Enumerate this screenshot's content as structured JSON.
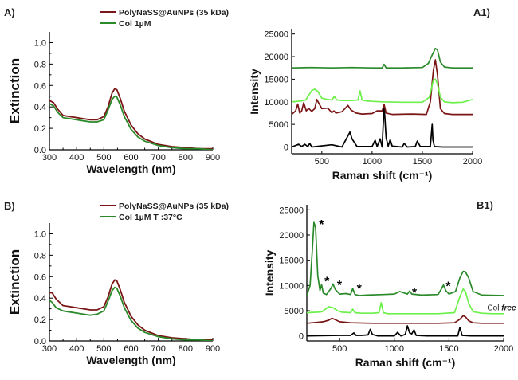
{
  "colors": {
    "dark_red": "#7b1616",
    "dark_green": "#2a8a2a",
    "light_green": "#6cf04a",
    "black": "#000000"
  },
  "chart_data": [
    {
      "id": "A",
      "panel_label": "A)",
      "type": "line",
      "xlabel": "Wavelength (nm)",
      "ylabel": "Extinction",
      "xlim": [
        300,
        900
      ],
      "ylim": [
        0,
        1.1
      ],
      "xticks": [
        300,
        400,
        500,
        600,
        700,
        800,
        900
      ],
      "yticks": [
        0.0,
        0.2,
        0.4,
        0.6,
        0.8,
        1.0
      ],
      "legend": "top-center",
      "series": [
        {
          "name": "PolyNaSS@AuNPs (35 kDa)",
          "color": "#7b1616",
          "x": [
            300,
            315,
            330,
            350,
            375,
            400,
            425,
            450,
            475,
            500,
            515,
            530,
            540,
            548,
            560,
            575,
            600,
            625,
            650,
            700,
            750,
            800,
            850,
            900
          ],
          "y": [
            0.46,
            0.44,
            0.38,
            0.32,
            0.31,
            0.3,
            0.29,
            0.28,
            0.28,
            0.31,
            0.4,
            0.53,
            0.57,
            0.56,
            0.48,
            0.36,
            0.23,
            0.15,
            0.1,
            0.05,
            0.03,
            0.02,
            0.01,
            0.01
          ]
        },
        {
          "name": "Col 1µM",
          "color": "#2a8a2a",
          "x": [
            300,
            315,
            330,
            350,
            375,
            400,
            425,
            450,
            475,
            500,
            515,
            530,
            540,
            548,
            560,
            575,
            600,
            625,
            650,
            700,
            750,
            800,
            850,
            900
          ],
          "y": [
            0.43,
            0.41,
            0.35,
            0.3,
            0.29,
            0.28,
            0.27,
            0.26,
            0.26,
            0.28,
            0.37,
            0.47,
            0.5,
            0.49,
            0.42,
            0.31,
            0.19,
            0.12,
            0.08,
            0.04,
            0.02,
            0.01,
            0.01,
            0.0
          ]
        }
      ]
    },
    {
      "id": "A1",
      "panel_label": "A1)",
      "type": "line",
      "xlabel": "Raman shift (cm⁻¹)",
      "ylabel": "Intensity",
      "xlim": [
        200,
        2000
      ],
      "ylim": [
        -1500,
        26000
      ],
      "xticks": [
        500,
        1000,
        1500,
        2000
      ],
      "yticks": [
        0,
        5000,
        10000,
        15000,
        20000,
        25000
      ],
      "series": [
        {
          "color": "#000000",
          "x": [
            200,
            270,
            300,
            330,
            360,
            380,
            400,
            600,
            700,
            780,
            800,
            850,
            1000,
            1030,
            1050,
            1080,
            1100,
            1120,
            1140,
            1160,
            1180,
            1200,
            1300,
            1320,
            1350,
            1430,
            1450,
            1480,
            1580,
            1598,
            1605,
            1620,
            1700,
            2000
          ],
          "y": [
            0,
            600,
            100,
            600,
            100,
            800,
            0,
            500,
            0,
            3300,
            1800,
            100,
            100,
            1500,
            100,
            1800,
            0,
            9200,
            2000,
            200,
            1600,
            200,
            0,
            800,
            0,
            100,
            1300,
            100,
            100,
            5000,
            1600,
            100,
            0,
            0
          ]
        },
        {
          "color": "#7b1616",
          "x": [
            200,
            240,
            260,
            280,
            300,
            320,
            345,
            370,
            400,
            430,
            450,
            500,
            560,
            600,
            620,
            640,
            700,
            760,
            790,
            840,
            900,
            1000,
            1050,
            1100,
            1120,
            1140,
            1200,
            1400,
            1540,
            1580,
            1610,
            1630,
            1650,
            1680,
            1720,
            1800,
            2000
          ],
          "y": [
            7200,
            8000,
            9500,
            7500,
            8000,
            9800,
            8000,
            8500,
            7900,
            8500,
            10500,
            8500,
            8600,
            7600,
            8000,
            7500,
            7800,
            9200,
            8200,
            7500,
            7300,
            7400,
            8000,
            8000,
            9400,
            7500,
            7200,
            7300,
            7200,
            10000,
            17000,
            19300,
            16000,
            8500,
            7400,
            7200,
            7200
          ]
        },
        {
          "color": "#6cf04a",
          "x": [
            200,
            300,
            340,
            400,
            430,
            460,
            500,
            560,
            600,
            625,
            650,
            700,
            800,
            860,
            880,
            900,
            940,
            1000,
            1100,
            1300,
            1500,
            1570,
            1610,
            1630,
            1650,
            1680,
            1720,
            1800,
            1900,
            2000
          ],
          "y": [
            10000,
            10200,
            10400,
            12500,
            12800,
            12300,
            10800,
            10500,
            10400,
            11200,
            10400,
            10300,
            10300,
            10400,
            12400,
            10400,
            10200,
            10100,
            10000,
            9900,
            9900,
            11000,
            14800,
            15000,
            14000,
            11000,
            10000,
            9800,
            9900,
            10500
          ]
        },
        {
          "color": "#2a8a2a",
          "x": [
            200,
            400,
            600,
            800,
            1000,
            1100,
            1120,
            1140,
            1300,
            1500,
            1560,
            1600,
            1630,
            1650,
            1680,
            1720,
            1800,
            2000
          ],
          "y": [
            17500,
            17600,
            17500,
            17600,
            17500,
            17500,
            18300,
            17500,
            17500,
            17600,
            18500,
            20500,
            21800,
            21500,
            18800,
            17700,
            17500,
            17500
          ]
        }
      ]
    },
    {
      "id": "B",
      "panel_label": "B)",
      "type": "line",
      "xlabel": "Wavelength (nm)",
      "ylabel": "Extinction",
      "xlim": [
        300,
        900
      ],
      "ylim": [
        0,
        1.1
      ],
      "xticks": [
        300,
        400,
        500,
        600,
        700,
        800,
        900
      ],
      "yticks": [
        0.0,
        0.2,
        0.4,
        0.6,
        0.8,
        1.0
      ],
      "legend": "top-center",
      "series": [
        {
          "name": "PolyNaSS@AuNPs (35 kDa)",
          "color": "#7b1616",
          "x": [
            300,
            310,
            325,
            350,
            375,
            400,
            425,
            450,
            475,
            500,
            515,
            530,
            540,
            548,
            560,
            575,
            600,
            625,
            650,
            700,
            750,
            800,
            850,
            900
          ],
          "y": [
            0.45,
            0.45,
            0.39,
            0.33,
            0.32,
            0.31,
            0.3,
            0.29,
            0.29,
            0.32,
            0.41,
            0.53,
            0.57,
            0.56,
            0.48,
            0.36,
            0.23,
            0.15,
            0.1,
            0.05,
            0.03,
            0.02,
            0.01,
            0.01
          ]
        },
        {
          "name": "Col 1µM T :37°C",
          "color": "#2a8a2a",
          "x": [
            300,
            310,
            325,
            350,
            375,
            400,
            425,
            450,
            475,
            500,
            515,
            530,
            540,
            548,
            560,
            575,
            600,
            625,
            650,
            700,
            750,
            800,
            850,
            900
          ],
          "y": [
            0.38,
            0.36,
            0.31,
            0.28,
            0.27,
            0.26,
            0.25,
            0.24,
            0.25,
            0.28,
            0.37,
            0.47,
            0.5,
            0.49,
            0.42,
            0.31,
            0.19,
            0.12,
            0.08,
            0.04,
            0.02,
            0.01,
            0.01,
            0.0
          ]
        }
      ]
    },
    {
      "id": "B1",
      "panel_label": "B1)",
      "type": "line",
      "xlabel": "Raman shift (cm⁻¹)",
      "ylabel": "Intensity",
      "xlim": [
        200,
        2000
      ],
      "ylim": [
        -1000,
        26000
      ],
      "xticks": [
        500,
        1000,
        1500,
        2000
      ],
      "yticks": [
        0,
        5000,
        10000,
        15000,
        20000,
        25000
      ],
      "annotations": [
        {
          "text": "*",
          "x": 290,
          "y": 22500
        },
        {
          "text": "*",
          "x": 340,
          "y": 11200
        },
        {
          "text": "*",
          "x": 455,
          "y": 10500
        },
        {
          "text": "*",
          "x": 635,
          "y": 9800
        },
        {
          "text": "*",
          "x": 1140,
          "y": 9000
        },
        {
          "text": "*",
          "x": 1450,
          "y": 10300
        }
      ],
      "inline_label": {
        "prefix": "Col ",
        "italic": "free",
        "x": 1850,
        "y": 5700
      },
      "series": [
        {
          "color": "#000000",
          "x": [
            200,
            500,
            600,
            630,
            650,
            700,
            760,
            780,
            800,
            850,
            1000,
            1030,
            1060,
            1100,
            1120,
            1140,
            1160,
            1180,
            1200,
            1300,
            1580,
            1600,
            1620,
            1700,
            2000
          ],
          "y": [
            0,
            100,
            100,
            600,
            100,
            100,
            200,
            1300,
            300,
            0,
            0,
            700,
            0,
            300,
            2000,
            600,
            400,
            1200,
            100,
            0,
            0,
            1700,
            100,
            0,
            0
          ]
        },
        {
          "color": "#7b1616",
          "x": [
            200,
            300,
            350,
            400,
            430,
            460,
            500,
            600,
            800,
            1000,
            1200,
            1400,
            1550,
            1600,
            1630,
            1650,
            1680,
            1720,
            1800,
            2000
          ],
          "y": [
            2500,
            2700,
            2800,
            3100,
            3500,
            3200,
            2800,
            2600,
            2500,
            2500,
            2500,
            2500,
            2600,
            3300,
            4000,
            3800,
            3000,
            2600,
            2500,
            2500
          ]
        },
        {
          "color": "#6cf04a",
          "x": [
            200,
            300,
            340,
            400,
            440,
            480,
            520,
            600,
            620,
            640,
            700,
            800,
            860,
            880,
            900,
            940,
            1000,
            1200,
            1400,
            1550,
            1600,
            1630,
            1650,
            1680,
            1720,
            1800,
            1900,
            2000
          ],
          "y": [
            4600,
            4700,
            4800,
            5800,
            5600,
            5000,
            4700,
            4600,
            5300,
            4600,
            4500,
            4500,
            4600,
            6600,
            4600,
            4400,
            4400,
            4400,
            4400,
            4600,
            7800,
            9300,
            8800,
            6500,
            4800,
            4500,
            4400,
            4400
          ]
        },
        {
          "color": "#2a8a2a",
          "x": [
            200,
            230,
            250,
            265,
            280,
            300,
            320,
            335,
            350,
            380,
            420,
            440,
            460,
            500,
            560,
            600,
            620,
            640,
            680,
            750,
            900,
            1000,
            1050,
            1120,
            1140,
            1160,
            1250,
            1400,
            1430,
            1450,
            1470,
            1500,
            1560,
            1600,
            1630,
            1650,
            1680,
            1720,
            1800,
            2000
          ],
          "y": [
            8000,
            10000,
            17000,
            22500,
            21500,
            12000,
            9000,
            10200,
            8500,
            8200,
            9400,
            10300,
            9200,
            8300,
            8400,
            8200,
            9400,
            8200,
            8000,
            8100,
            8200,
            8300,
            8800,
            8300,
            8900,
            8300,
            8100,
            8200,
            9300,
            10100,
            9000,
            8300,
            8800,
            11500,
            12800,
            12700,
            11500,
            8800,
            8100,
            8000
          ]
        }
      ]
    }
  ]
}
